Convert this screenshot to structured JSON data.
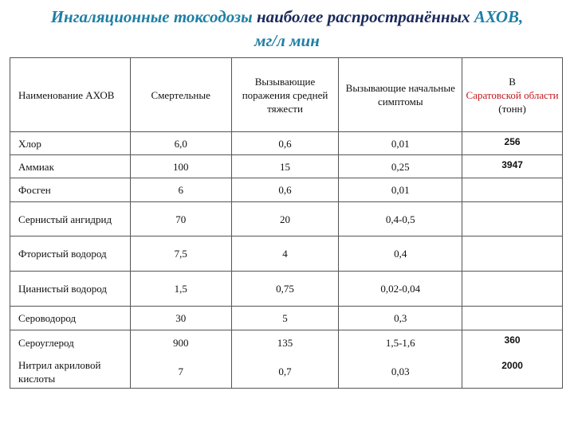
{
  "header": {
    "title_part1": "Ингаляционные токсодозы",
    "title_part2": "наиболее распространённых",
    "title_part3": "АХОВ,",
    "title_part4": "мг/л мин"
  },
  "table": {
    "columns": [
      "Наименование АХОВ",
      "Смертельные",
      "Вызывающие поражения средней тяжести",
      "Вызывающие начальные симптомы"
    ],
    "region_header": {
      "prefix": "В",
      "region": "Саратовской области",
      "unit": "(тонн)"
    },
    "rows": [
      [
        "Хлор",
        "6,0",
        "0,6",
        "0,01",
        "256"
      ],
      [
        "Аммиак",
        "100",
        "15",
        "0,25",
        "3947"
      ],
      [
        "Фосген",
        "6",
        "0,6",
        "0,01",
        null
      ],
      [
        "Сернистый ангидрид",
        "70",
        "20",
        "0,4-0,5",
        null
      ],
      [
        "Фтористый водород",
        "7,5",
        "4",
        "0,4",
        null
      ],
      [
        "Цианистый водород",
        "1,5",
        "0,75",
        "0,02-0,04",
        null
      ],
      [
        "Сероводород",
        "30",
        "5",
        "0,3",
        null
      ],
      [
        "Сероуглерод",
        "900",
        "135",
        "1,5-1,6",
        "360"
      ],
      [
        "Нитрил акриловой кислоты",
        "7",
        "0,7",
        "0,03",
        "2000"
      ]
    ]
  }
}
